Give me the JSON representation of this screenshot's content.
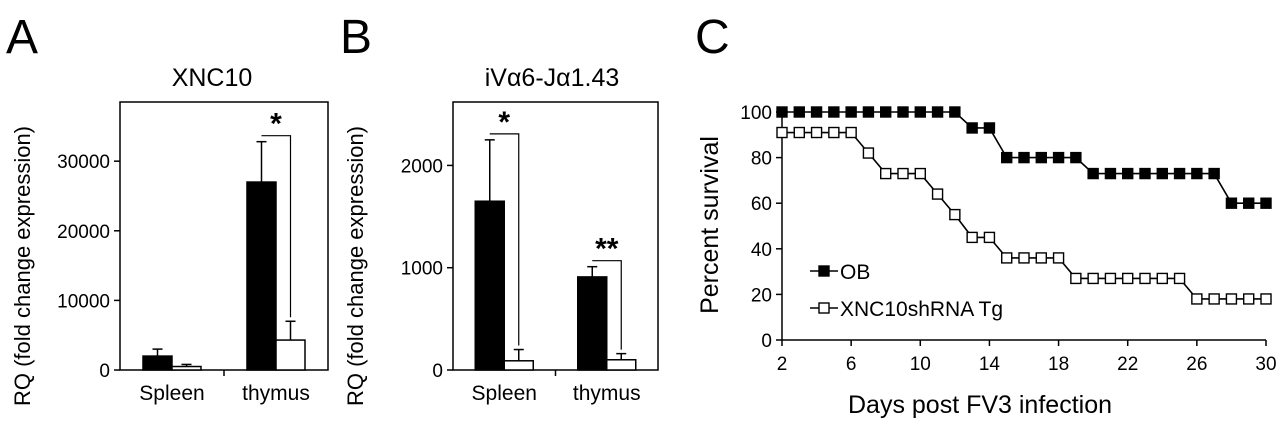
{
  "panels": [
    "A",
    "B",
    "C"
  ],
  "chart_data": [
    {
      "type": "bar",
      "title": "XNC10",
      "xlabel": "",
      "ylabel": "RQ (fold change expression)",
      "ylim": [
        0,
        38500
      ],
      "yticks": [
        0,
        10000,
        20000,
        30000
      ],
      "categories": [
        "Spleen",
        "thymus"
      ],
      "series": [
        {
          "color": "#000000",
          "values": [
            2000,
            27000
          ],
          "errors": [
            1000,
            5800
          ]
        },
        {
          "color": "#ffffff",
          "values": [
            500,
            4300
          ],
          "errors": [
            300,
            2700
          ]
        }
      ],
      "annotations": [
        {
          "category": "thymus",
          "text": "*"
        }
      ],
      "grid": false
    },
    {
      "type": "bar",
      "title": "iVα6-Jα1.43",
      "xlabel": "",
      "ylabel": "RQ (fold change expression)",
      "ylim": [
        0,
        2620
      ],
      "yticks": [
        0,
        1000,
        2000
      ],
      "categories": [
        "Spleen",
        "thymus"
      ],
      "series": [
        {
          "color": "#000000",
          "values": [
            1650,
            910
          ],
          "errors": [
            600,
            100
          ]
        },
        {
          "color": "#ffffff",
          "values": [
            90,
            100
          ],
          "errors": [
            110,
            60
          ]
        }
      ],
      "annotations": [
        {
          "category": "Spleen",
          "text": "*"
        },
        {
          "category": "thymus",
          "text": "**"
        }
      ],
      "grid": false
    },
    {
      "type": "line",
      "title": "",
      "xlabel": "Days post FV3 infection",
      "ylabel": "Percent survival",
      "xlim": [
        2,
        30
      ],
      "ylim": [
        0,
        100
      ],
      "xticks": [
        2,
        6,
        10,
        14,
        18,
        22,
        26,
        30
      ],
      "yticks": [
        0,
        20,
        40,
        60,
        80,
        100
      ],
      "legend_position": "lower-left",
      "grid": false,
      "series": [
        {
          "name": "OB",
          "marker": "filled-square",
          "x": [
            2,
            3,
            4,
            5,
            6,
            7,
            8,
            9,
            10,
            11,
            12,
            13,
            14,
            15,
            16,
            17,
            18,
            19,
            20,
            21,
            22,
            23,
            24,
            25,
            26,
            27,
            28,
            29,
            30
          ],
          "y": [
            100,
            100,
            100,
            100,
            100,
            100,
            100,
            100,
            100,
            100,
            100,
            93,
            93,
            80,
            80,
            80,
            80,
            80,
            73,
            73,
            73,
            73,
            73,
            73,
            73,
            73,
            60,
            60,
            60
          ]
        },
        {
          "name": "XNC10shRNA Tg",
          "marker": "open-square",
          "x": [
            2,
            3,
            4,
            5,
            6,
            7,
            8,
            9,
            10,
            11,
            12,
            13,
            14,
            15,
            16,
            17,
            18,
            19,
            20,
            21,
            22,
            23,
            24,
            25,
            26,
            27,
            28,
            29,
            30
          ],
          "y": [
            91,
            91,
            91,
            91,
            91,
            82,
            73,
            73,
            73,
            64,
            55,
            45,
            45,
            36,
            36,
            36,
            36,
            27,
            27,
            27,
            27,
            27,
            27,
            27,
            18,
            18,
            18,
            18,
            18
          ]
        }
      ]
    }
  ]
}
